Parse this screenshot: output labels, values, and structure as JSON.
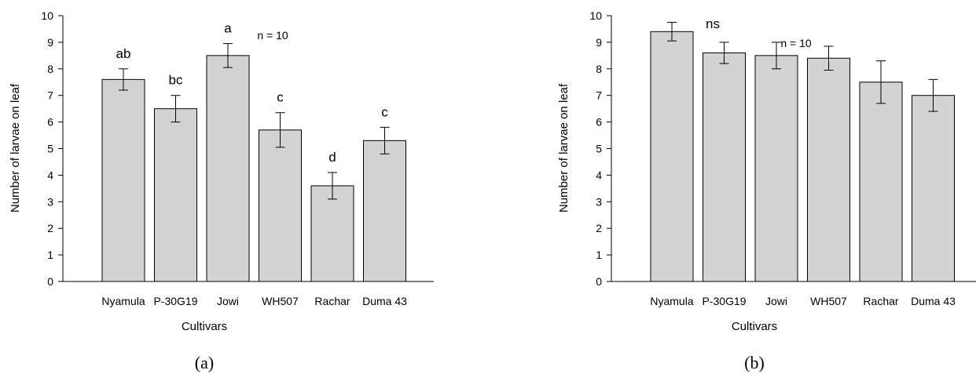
{
  "chart_data": [
    {
      "type": "bar",
      "panel_label": "(a)",
      "categories": [
        "Nyamula",
        "P-30G19",
        "Jowi",
        "WH507",
        "Rachar",
        "Duma 43"
      ],
      "values": [
        7.6,
        6.5,
        8.5,
        5.7,
        3.6,
        5.3
      ],
      "errors": [
        0.4,
        0.5,
        0.45,
        0.65,
        0.5,
        0.5
      ],
      "annotations": [
        "ab",
        "bc",
        "a",
        "c",
        "d",
        "c"
      ],
      "n_label": "n = 10",
      "xlabel": "Cultivars",
      "ylabel": "Number of larvae on leaf",
      "ylim": [
        0,
        10
      ],
      "yticks": [
        "0",
        "1",
        "2",
        "3",
        "4",
        "5",
        "6",
        "7",
        "8",
        "9",
        "10"
      ],
      "bar_color": "#d3d3d3",
      "grid": false,
      "legend": "none"
    },
    {
      "type": "bar",
      "panel_label": "(b)",
      "categories": [
        "Nyamula",
        "P-30G19",
        "Jowi",
        "WH507",
        "Rachar",
        "Duma 43"
      ],
      "values": [
        9.4,
        8.6,
        8.5,
        8.4,
        7.5,
        7.0
      ],
      "errors": [
        0.35,
        0.4,
        0.5,
        0.45,
        0.8,
        0.6
      ],
      "annotations": [],
      "significance_label": "ns",
      "n_label": "n = 10",
      "xlabel": "Cultivars",
      "ylabel": "Number of larvae on leaf",
      "ylim": [
        0,
        10
      ],
      "yticks": [
        "0",
        "1",
        "2",
        "3",
        "4",
        "5",
        "6",
        "7",
        "8",
        "9",
        "10"
      ],
      "bar_color": "#d3d3d3",
      "grid": false,
      "legend": "none"
    }
  ]
}
